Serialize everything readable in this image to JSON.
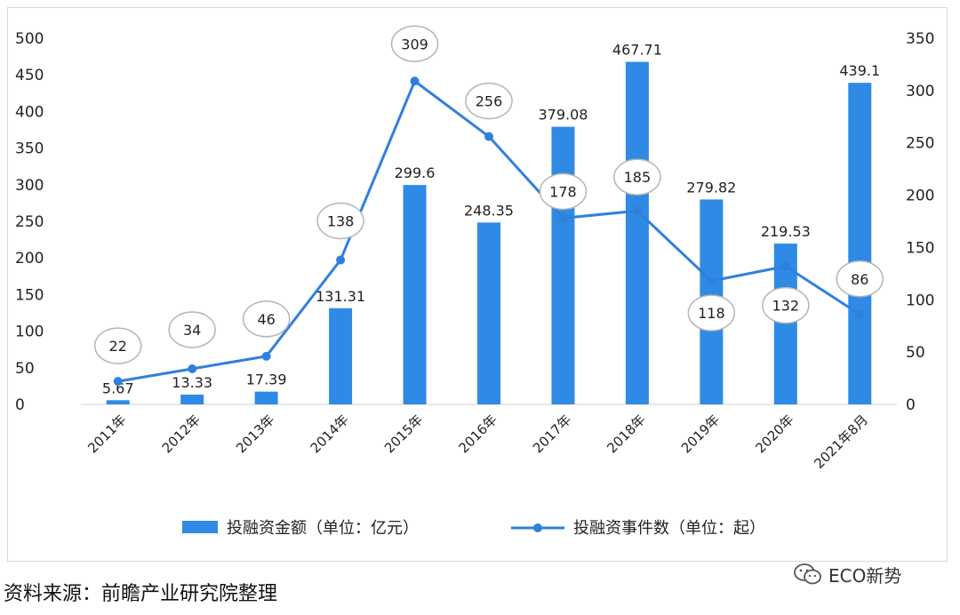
{
  "chart_data": {
    "type": "bar",
    "categories": [
      "2011年",
      "2012年",
      "2013年",
      "2014年",
      "2015年",
      "2016年",
      "2017年",
      "2018年",
      "2019年",
      "2020年",
      "2021年8月"
    ],
    "series": [
      {
        "name": "投融资金额（单位：亿元）",
        "type": "bar",
        "axis": "left",
        "values": [
          5.67,
          13.33,
          17.39,
          131.31,
          299.6,
          248.35,
          379.08,
          467.71,
          279.82,
          219.53,
          439.1
        ],
        "labels": [
          "5.67",
          "13.33",
          "17.39",
          "131.31",
          "299.6",
          "248.35",
          "379.08",
          "467.71",
          "279.82",
          "219.53",
          "439.1"
        ]
      },
      {
        "name": "投融资事件数（单位：起）",
        "type": "line",
        "axis": "right",
        "values": [
          22,
          34,
          46,
          138,
          309,
          256,
          178,
          185,
          118,
          132,
          86
        ],
        "labels": [
          "22",
          "34",
          "46",
          "138",
          "309",
          "256",
          "178",
          "185",
          "118",
          "132",
          "86"
        ]
      }
    ],
    "y_left": {
      "range": [
        0,
        500
      ],
      "ticks": [
        "0",
        "50",
        "100",
        "150",
        "200",
        "250",
        "300",
        "350",
        "400",
        "450",
        "500"
      ]
    },
    "y_right": {
      "range": [
        0,
        350
      ],
      "ticks": [
        "0",
        "50",
        "100",
        "150",
        "200",
        "250",
        "300",
        "350"
      ]
    },
    "grid": false,
    "legend_position": "bottom",
    "colors": {
      "bar": "#2f8ae6",
      "line": "#2f80dd",
      "label_circle_stroke": "#b5b5b5"
    }
  },
  "footer": {
    "source": "资料来源：前瞻产业研究院整理"
  },
  "brand": {
    "label": "ECO新势",
    "icon": "wechat-icon"
  }
}
